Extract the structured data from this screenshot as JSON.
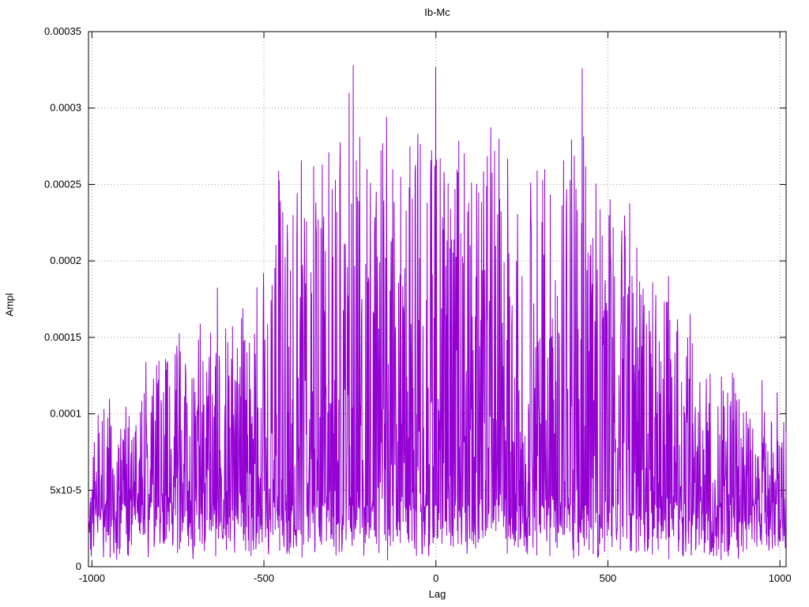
{
  "page": {
    "background": "#ffffff"
  },
  "chart_data": {
    "type": "line",
    "title": "Ib-Mc",
    "xlabel": "Lag",
    "ylabel": "Ampl",
    "xlim": [
      -1010,
      1018
    ],
    "ylim": [
      0,
      0.00035
    ],
    "grid": "dotted",
    "grid_color": "#9a9a9a",
    "border_color": "#000000",
    "legend": "none",
    "xticks": [
      {
        "value": -1000,
        "label": "-1000"
      },
      {
        "value": -500,
        "label": "-500"
      },
      {
        "value": 0,
        "label": "0"
      },
      {
        "value": 500,
        "label": "500"
      },
      {
        "value": 1000,
        "label": "1000"
      }
    ],
    "yticks": [
      {
        "value": 0.0,
        "label": "0"
      },
      {
        "value": 5e-05,
        "label": "5x10-5"
      },
      {
        "value": 0.0001,
        "label": "0.0001"
      },
      {
        "value": 0.00015,
        "label": "0.00015"
      },
      {
        "value": 0.0002,
        "label": "0.0002"
      },
      {
        "value": 0.00025,
        "label": "0.00025"
      },
      {
        "value": 0.0003,
        "label": "0.0003"
      },
      {
        "value": 0.00035,
        "label": "0.00035"
      }
    ],
    "series": [
      {
        "name": "Ib-Mc",
        "color": "#9400d3",
        "style": "noisy-spikes",
        "n_points": 2030,
        "seed": 42,
        "noise_floor": [
          4e-06,
          4e-05
        ],
        "spike_exponent": 2.8,
        "tall_spike_fraction": 0.08,
        "envelope": [
          [
            -1010,
            5.5e-05
          ],
          [
            -950,
            9e-05
          ],
          [
            -880,
            9.5e-05
          ],
          [
            -820,
            0.00011
          ],
          [
            -760,
            0.00012
          ],
          [
            -700,
            0.000115
          ],
          [
            -650,
            0.000155
          ],
          [
            -600,
            0.00014
          ],
          [
            -550,
            0.000145
          ],
          [
            -500,
            0.00016
          ],
          [
            -460,
            0.000225
          ],
          [
            -420,
            0.000235
          ],
          [
            -370,
            0.00024
          ],
          [
            -330,
            0.000265
          ],
          [
            -290,
            0.000245
          ],
          [
            -250,
            0.00031
          ],
          [
            -210,
            0.000265
          ],
          [
            -160,
            0.00026
          ],
          [
            -110,
            0.000265
          ],
          [
            -60,
            0.00027
          ],
          [
            -20,
            0.00028
          ],
          [
            0,
            0.00031
          ],
          [
            30,
            0.00025
          ],
          [
            80,
            0.000245
          ],
          [
            130,
            0.00024
          ],
          [
            180,
            0.000285
          ],
          [
            230,
            0.000215
          ],
          [
            280,
            0.000235
          ],
          [
            330,
            0.000225
          ],
          [
            380,
            0.000245
          ],
          [
            430,
            0.0003
          ],
          [
            470,
            0.000225
          ],
          [
            520,
            0.000225
          ],
          [
            570,
            0.000195
          ],
          [
            620,
            0.000185
          ],
          [
            670,
            0.00017
          ],
          [
            720,
            0.00014
          ],
          [
            780,
            0.000115
          ],
          [
            840,
            0.000105
          ],
          [
            900,
            9.5e-05
          ],
          [
            960,
            8.5e-05
          ],
          [
            1018,
            9e-05
          ]
        ],
        "notable_peaks": [
          [
            -240,
            0.000328
          ],
          [
            0,
            0.000327
          ],
          [
            425,
            0.000326
          ],
          [
            183,
            0.00028
          ],
          [
            170,
            0.000272
          ],
          [
            -75,
            0.000275
          ],
          [
            -330,
            0.000263
          ],
          [
            435,
            0.000262
          ],
          [
            -355,
            0.000262
          ],
          [
            -252,
            0.00031
          ],
          [
            55,
            0.000247
          ],
          [
            -125,
            0.00026
          ],
          [
            -200,
            0.00026
          ],
          [
            310,
            0.000253
          ],
          [
            390,
            0.000253
          ],
          [
            -445,
            0.000232
          ],
          [
            -415,
            0.00023
          ],
          [
            515,
            0.000222
          ],
          [
            630,
            0.000186
          ],
          [
            -655,
            0.000153
          ],
          [
            700,
            0.000154
          ],
          [
            -905,
            9e-05
          ],
          [
            820,
            0.000105
          ],
          [
            95,
            0.000238
          ],
          [
            -25,
            0.000238
          ],
          [
            250,
            0.00019
          ],
          [
            570,
            0.00019
          ]
        ]
      }
    ]
  }
}
